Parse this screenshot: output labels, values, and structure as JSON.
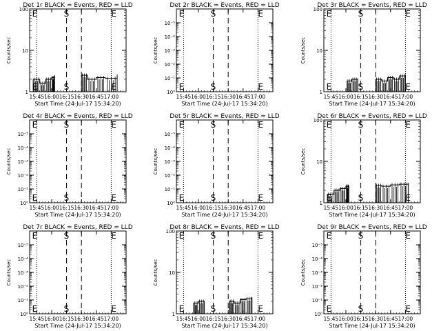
{
  "chart_data": [
    {
      "type": "line",
      "title": "Det 1r BLACK = Events, RED = LLD",
      "xlabel": "Start Time (24-Jul-17 15:34:20)",
      "ylabel": "Counts/sec",
      "yscale": "log",
      "ylim": [
        1,
        100
      ],
      "yticks": [
        "1",
        "10",
        "100"
      ],
      "xlim": [
        15.63,
        17.25
      ],
      "xticks": [
        "15:45",
        "16:00",
        "16:15",
        "16:30",
        "16:45",
        "17:00"
      ],
      "dotted_lines_x": [
        15.75,
        17.0
      ],
      "dashed_lines_x": [
        16.25,
        16.5
      ],
      "markers": [
        {
          "text": "E",
          "x": 15.66
        },
        {
          "text": "S",
          "x": 16.25
        },
        {
          "text": "E",
          "x": 17.0
        }
      ],
      "series": [
        {
          "color": "#000000",
          "segments": [
            {
              "x": [
                15.69,
                15.8,
                15.9,
                16.0,
                16.05
              ],
              "y": [
                2.0,
                1.6,
                2.0,
                2.2,
                2.5
              ]
            },
            {
              "x": [
                16.5,
                16.6,
                16.75,
                16.9,
                17.1
              ],
              "y": [
                2.5,
                2.0,
                2.2,
                2.1,
                2.6
              ]
            }
          ]
        }
      ]
    },
    {
      "type": "line",
      "title": "Det 2r BLACK = Events, RED = LLD",
      "xlabel": "Start Time (24-Jul-17 15:34:20)",
      "ylabel": "Counts/sec",
      "yscale": "log",
      "ylim": [
        1,
        1000000
      ],
      "yticks": [
        "10⁰",
        "10⁻¹",
        "10⁻²",
        "10⁻³",
        "10⁻⁴",
        "10⁻⁵"
      ],
      "xlim": [
        15.63,
        17.25
      ],
      "xticks": [
        "15:45",
        "16:00",
        "16:15",
        "16:30",
        "16:45",
        "17:00"
      ],
      "dotted_lines_x": [
        15.75,
        17.0
      ],
      "dashed_lines_x": [
        16.25,
        16.5
      ],
      "markers": [
        {
          "text": "E",
          "x": 15.66
        },
        {
          "text": "S",
          "x": 16.25
        },
        {
          "text": "E",
          "x": 17.0
        }
      ],
      "series": []
    },
    {
      "type": "line",
      "title": "Det 3r BLACK = Events, RED = LLD",
      "xlabel": "Start Time (24-Jul-17 15:34:20)",
      "ylabel": "Counts/sec",
      "yscale": "log",
      "ylim": [
        1,
        100
      ],
      "yticks": [
        "1",
        "10",
        "100"
      ],
      "xlim": [
        15.63,
        17.25
      ],
      "xticks": [
        "15:45",
        "16:00",
        "16:15",
        "16:30",
        "16:45",
        "17:00"
      ],
      "dotted_lines_x": [
        15.75,
        17.0
      ],
      "dashed_lines_x": [
        16.25,
        16.5
      ],
      "markers": [
        {
          "text": "E",
          "x": 15.66
        },
        {
          "text": "S",
          "x": 16.25
        },
        {
          "text": "E",
          "x": 17.0
        }
      ],
      "series": [
        {
          "color": "#000000",
          "segments": [
            {
              "x": [
                16.02,
                16.1,
                16.2
              ],
              "y": [
                1.8,
                2.0,
                1.7
              ]
            },
            {
              "x": [
                16.5,
                16.6,
                16.7,
                16.8,
                16.9,
                17.0
              ],
              "y": [
                2.0,
                1.8,
                2.2,
                2.0,
                2.4,
                2.6
              ]
            }
          ]
        }
      ]
    },
    {
      "type": "line",
      "title": "Det 4r BLACK = Events, RED = LLD",
      "xlabel": "Start Time (24-Jul-17 15:34:20)",
      "ylabel": "Counts/sec",
      "yscale": "log",
      "ylim": [
        1,
        1000000
      ],
      "yticks": [
        "10⁰",
        "10⁻¹",
        "10⁻²",
        "10⁻³",
        "10⁻⁴",
        "10⁻⁵"
      ],
      "xlim": [
        15.63,
        17.25
      ],
      "xticks": [
        "15:45",
        "16:00",
        "16:15",
        "16:30",
        "16:45",
        "17:00"
      ],
      "dotted_lines_x": [
        15.75,
        17.0
      ],
      "dashed_lines_x": [
        16.25,
        16.5
      ],
      "markers": [
        {
          "text": "E",
          "x": 15.66
        },
        {
          "text": "S",
          "x": 16.25
        },
        {
          "text": "E",
          "x": 17.0
        }
      ],
      "series": []
    },
    {
      "type": "line",
      "title": "Det 5r BLACK = Events, RED = LLD",
      "xlabel": "Start Time (24-Jul-17 15:34:20)",
      "ylabel": "Counts/sec",
      "yscale": "log",
      "ylim": [
        1,
        1000000
      ],
      "yticks": [
        "10⁰",
        "10⁻¹",
        "10⁻²",
        "10⁻³",
        "10⁻⁴",
        "10⁻⁵"
      ],
      "xlim": [
        15.63,
        17.25
      ],
      "xticks": [
        "15:45",
        "16:00",
        "16:15",
        "16:30",
        "16:45",
        "17:00"
      ],
      "dotted_lines_x": [
        15.75,
        17.0
      ],
      "dashed_lines_x": [
        16.25,
        16.5
      ],
      "markers": [
        {
          "text": "E",
          "x": 15.66
        },
        {
          "text": "S",
          "x": 16.25
        },
        {
          "text": "E",
          "x": 17.0
        }
      ],
      "series": []
    },
    {
      "type": "line",
      "title": "Det 6r BLACK = Events, RED = LLD",
      "xlabel": "Start Time (24-Jul-17 15:34:20)",
      "ylabel": "Counts/sec",
      "yscale": "log",
      "ylim": [
        1,
        100
      ],
      "yticks": [
        "1",
        "10",
        "100"
      ],
      "xlim": [
        15.63,
        17.25
      ],
      "xticks": [
        "15:45",
        "16:00",
        "16:15",
        "16:30",
        "16:45",
        "17:00"
      ],
      "dotted_lines_x": [
        15.75,
        17.0
      ],
      "dashed_lines_x": [
        16.25,
        16.5
      ],
      "markers": [
        {
          "text": "E",
          "x": 15.66
        },
        {
          "text": "S",
          "x": 16.25
        },
        {
          "text": "E",
          "x": 17.0
        }
      ],
      "series": [
        {
          "color": "#000000",
          "segments": [
            {
              "x": [
                15.69,
                15.8,
                15.9,
                16.0,
                16.05
              ],
              "y": [
                1.6,
                2.0,
                2.2,
                2.5,
                2.6
              ]
            },
            {
              "x": [
                16.5,
                16.6,
                16.75,
                16.9,
                17.05
              ],
              "y": [
                2.6,
                2.5,
                2.7,
                2.8,
                3.0
              ]
            }
          ]
        }
      ]
    },
    {
      "type": "line",
      "title": "Det 7r BLACK = Events, RED = LLD",
      "xlabel": "Start Time (24-Jul-17 15:34:20)",
      "ylabel": "Counts/sec",
      "yscale": "log",
      "ylim": [
        1,
        1000000
      ],
      "yticks": [
        "10⁰",
        "10⁻¹",
        "10⁻²",
        "10⁻³",
        "10⁻⁴",
        "10⁻⁵"
      ],
      "xlim": [
        15.63,
        17.25
      ],
      "xticks": [
        "15:45",
        "16:00",
        "16:15",
        "16:30",
        "16:45",
        "17:00"
      ],
      "dotted_lines_x": [
        15.75,
        17.0
      ],
      "dashed_lines_x": [
        16.25,
        16.5
      ],
      "markers": [
        {
          "text": "E",
          "x": 15.66
        },
        {
          "text": "S",
          "x": 16.25
        },
        {
          "text": "E",
          "x": 17.0
        }
      ],
      "series": []
    },
    {
      "type": "line",
      "title": "Det 8r BLACK = Events, RED = LLD",
      "xlabel": "Start Time (24-Jul-17 15:34:20)",
      "ylabel": "Counts/sec",
      "yscale": "log",
      "ylim": [
        1,
        100
      ],
      "yticks": [
        "1",
        "10",
        "100"
      ],
      "xlim": [
        15.63,
        17.25
      ],
      "xticks": [
        "15:45",
        "16:00",
        "16:15",
        "16:30",
        "16:45",
        "17:00"
      ],
      "dotted_lines_x": [
        15.75,
        17.0
      ],
      "dashed_lines_x": [
        16.25,
        16.5
      ],
      "markers": [
        {
          "text": "E",
          "x": 15.66
        },
        {
          "text": "S",
          "x": 16.25
        },
        {
          "text": "E",
          "x": 17.0
        }
      ],
      "series": [
        {
          "color": "#000000",
          "segments": [
            {
              "x": [
                15.92,
                16.0,
                16.1
              ],
              "y": [
                1.8,
                2.0,
                1.7
              ]
            },
            {
              "x": [
                16.52,
                16.6,
                16.7,
                16.8,
                16.9
              ],
              "y": [
                2.0,
                1.8,
                2.2,
                2.3,
                2.5
              ]
            }
          ]
        }
      ]
    },
    {
      "type": "line",
      "title": "Det 9r BLACK = Events, RED = LLD",
      "xlabel": "Start Time (24-Jul-17 15:34:20)",
      "ylabel": "Counts/sec",
      "yscale": "log",
      "ylim": [
        1,
        1000000
      ],
      "yticks": [
        "10⁰",
        "10⁻¹",
        "10⁻²",
        "10⁻³",
        "10⁻⁴",
        "10⁻⁵"
      ],
      "xlim": [
        15.63,
        17.25
      ],
      "xticks": [
        "15:45",
        "16:00",
        "16:15",
        "16:30",
        "16:45",
        "17:00"
      ],
      "dotted_lines_x": [
        15.75,
        17.0
      ],
      "dashed_lines_x": [
        16.25,
        16.5
      ],
      "markers": [
        {
          "text": "E",
          "x": 15.66
        },
        {
          "text": "S",
          "x": 16.25
        },
        {
          "text": "E",
          "x": 17.0
        }
      ],
      "series": []
    }
  ]
}
